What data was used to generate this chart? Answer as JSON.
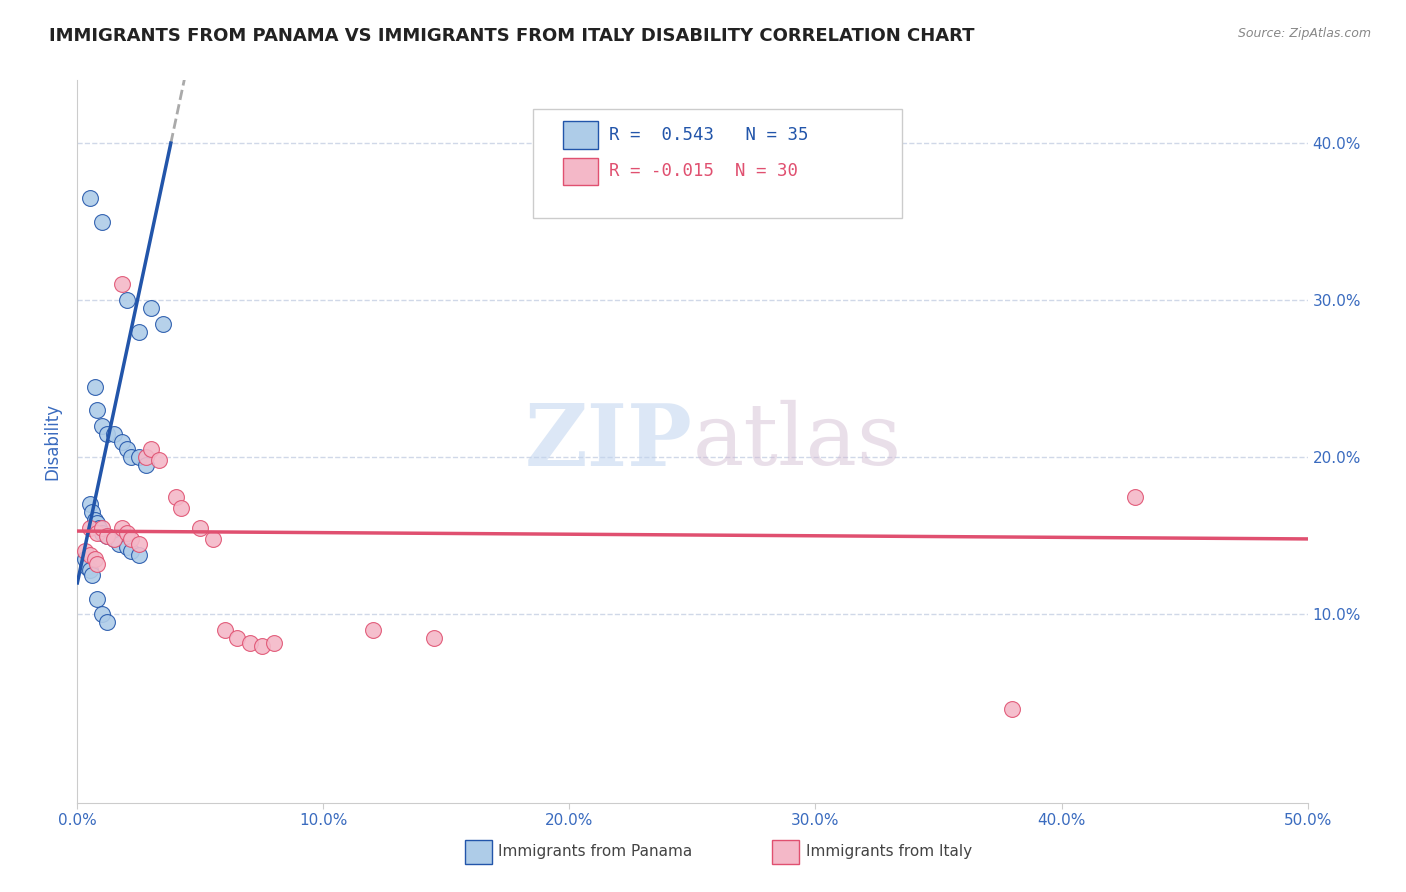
{
  "title": "IMMIGRANTS FROM PANAMA VS IMMIGRANTS FROM ITALY DISABILITY CORRELATION CHART",
  "source": "Source: ZipAtlas.com",
  "ylabel": "Disability",
  "xlim": [
    0.0,
    0.5
  ],
  "ylim": [
    -0.02,
    0.44
  ],
  "xticks": [
    0.0,
    0.1,
    0.2,
    0.3,
    0.4,
    0.5
  ],
  "yticks": [
    0.1,
    0.2,
    0.3,
    0.4
  ],
  "xticklabels": [
    "0.0%",
    "10.0%",
    "20.0%",
    "30.0%",
    "40.0%",
    "50.0%"
  ],
  "yticklabels_right": [
    "10.0%",
    "20.0%",
    "30.0%",
    "40.0%"
  ],
  "legend_r1": "R =  0.543",
  "legend_n1": "N = 35",
  "legend_r2": "R = -0.015",
  "legend_n2": "N = 30",
  "panama_color": "#aecce8",
  "italy_color": "#f4b8c8",
  "panama_line_color": "#2255aa",
  "italy_line_color": "#e05070",
  "watermark_zip": "ZIP",
  "watermark_atlas": "atlas",
  "background_color": "#ffffff",
  "grid_color": "#d0d8e8",
  "panama_scatter": [
    [
      0.005,
      0.365
    ],
    [
      0.01,
      0.35
    ],
    [
      0.02,
      0.3
    ],
    [
      0.025,
      0.28
    ],
    [
      0.03,
      0.295
    ],
    [
      0.035,
      0.285
    ],
    [
      0.007,
      0.245
    ],
    [
      0.008,
      0.23
    ],
    [
      0.01,
      0.22
    ],
    [
      0.012,
      0.215
    ],
    [
      0.015,
      0.215
    ],
    [
      0.018,
      0.21
    ],
    [
      0.02,
      0.205
    ],
    [
      0.022,
      0.2
    ],
    [
      0.025,
      0.2
    ],
    [
      0.028,
      0.195
    ],
    [
      0.005,
      0.17
    ],
    [
      0.006,
      0.165
    ],
    [
      0.007,
      0.16
    ],
    [
      0.008,
      0.158
    ],
    [
      0.009,
      0.155
    ],
    [
      0.01,
      0.152
    ],
    [
      0.012,
      0.15
    ],
    [
      0.015,
      0.148
    ],
    [
      0.017,
      0.145
    ],
    [
      0.02,
      0.143
    ],
    [
      0.022,
      0.14
    ],
    [
      0.025,
      0.138
    ],
    [
      0.003,
      0.135
    ],
    [
      0.004,
      0.13
    ],
    [
      0.005,
      0.128
    ],
    [
      0.006,
      0.125
    ],
    [
      0.008,
      0.11
    ],
    [
      0.01,
      0.1
    ],
    [
      0.012,
      0.095
    ]
  ],
  "italy_scatter": [
    [
      0.005,
      0.155
    ],
    [
      0.008,
      0.152
    ],
    [
      0.01,
      0.155
    ],
    [
      0.012,
      0.15
    ],
    [
      0.015,
      0.148
    ],
    [
      0.018,
      0.155
    ],
    [
      0.02,
      0.152
    ],
    [
      0.022,
      0.148
    ],
    [
      0.025,
      0.145
    ],
    [
      0.028,
      0.2
    ],
    [
      0.03,
      0.205
    ],
    [
      0.033,
      0.198
    ],
    [
      0.003,
      0.14
    ],
    [
      0.005,
      0.138
    ],
    [
      0.007,
      0.135
    ],
    [
      0.008,
      0.132
    ],
    [
      0.04,
      0.175
    ],
    [
      0.042,
      0.168
    ],
    [
      0.018,
      0.31
    ],
    [
      0.05,
      0.155
    ],
    [
      0.055,
      0.148
    ],
    [
      0.06,
      0.09
    ],
    [
      0.065,
      0.085
    ],
    [
      0.07,
      0.082
    ],
    [
      0.075,
      0.08
    ],
    [
      0.08,
      0.082
    ],
    [
      0.12,
      0.09
    ],
    [
      0.145,
      0.085
    ],
    [
      0.43,
      0.175
    ],
    [
      0.38,
      0.04
    ]
  ],
  "title_color": "#222222",
  "tick_color": "#3a6bbf"
}
